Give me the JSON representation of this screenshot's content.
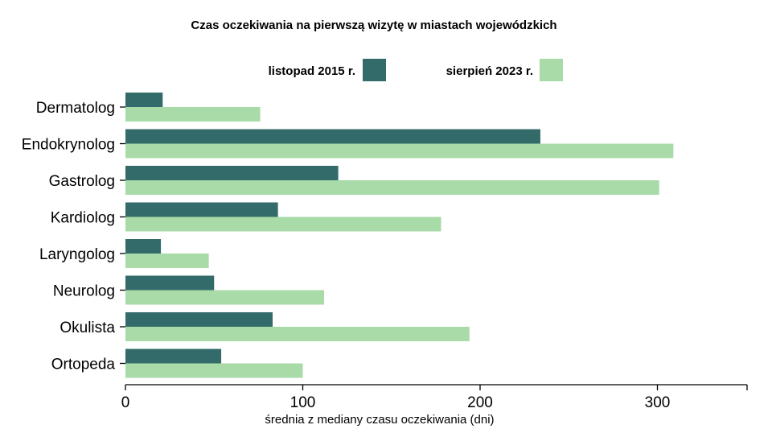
{
  "chart_data": {
    "type": "bar",
    "orientation": "horizontal",
    "title": "Czas oczekiwania na pierwszą wizytę w miastach wojewódzkich",
    "xlabel": "średnia z mediany czasu oczekiwania (dni)",
    "ylabel": "",
    "categories": [
      "Dermatolog",
      "Endokrynolog",
      "Gastrolog",
      "Kardiolog",
      "Laryngolog",
      "Neurolog",
      "Okulista",
      "Ortopeda"
    ],
    "series": [
      {
        "name": "listopad 2015 r.",
        "color": "#336b6b",
        "values": [
          21,
          234,
          120,
          86,
          20,
          50,
          83,
          54
        ]
      },
      {
        "name": "sierpień 2023 r.",
        "color": "#a8dba8",
        "values": [
          76,
          309,
          301,
          178,
          47,
          112,
          194,
          100
        ]
      }
    ],
    "xlim": [
      0,
      350
    ],
    "xticks": [
      0,
      100,
      200,
      300
    ],
    "xtick_labels": [
      "0",
      "100",
      "200",
      "300"
    ],
    "grid": false,
    "legend_position": "top-center"
  }
}
